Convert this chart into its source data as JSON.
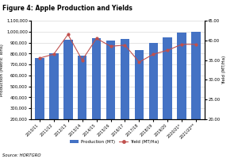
{
  "title": "Figure 4: Apple Production and Yields",
  "categories": [
    "2010/11",
    "2011/12",
    "2012/13",
    "2013/14",
    "2014/15",
    "2015/16",
    "2016/17",
    "2017/18",
    "2018/19",
    "2019/20",
    "2020/21*",
    "2021/22**"
  ],
  "production": [
    760000,
    800000,
    925000,
    780000,
    940000,
    920000,
    935000,
    835000,
    895000,
    950000,
    990000,
    1000000
  ],
  "yield": [
    35.5,
    36.5,
    41.5,
    35.0,
    40.5,
    38.5,
    38.8,
    34.5,
    36.5,
    37.5,
    39.0,
    39.0
  ],
  "bar_color": "#4472C4",
  "line_color": "#C0504D",
  "ylim_left": [
    200000,
    1100000
  ],
  "ylim_right": [
    20.0,
    45.0
  ],
  "yticks_left": [
    200000,
    300000,
    400000,
    500000,
    600000,
    700000,
    800000,
    900000,
    1000000,
    1100000
  ],
  "yticks_right": [
    20.0,
    25.0,
    30.0,
    35.0,
    40.0,
    45.0
  ],
  "ylabel_left": "Production (Metric Tons)",
  "ylabel_right": "Yield (MT/Ha)",
  "source": "Source: HORTGRO",
  "legend_production": "Production (MT)",
  "legend_yield": "Yield (MT/Ha)",
  "background_color": "#ffffff",
  "grid_color": "#d0d0d0",
  "title_fontsize": 5.5,
  "axis_label_fontsize": 4.0,
  "tick_fontsize": 3.8,
  "xtick_fontsize": 3.5,
  "legend_fontsize": 4.0,
  "source_fontsize": 3.8
}
